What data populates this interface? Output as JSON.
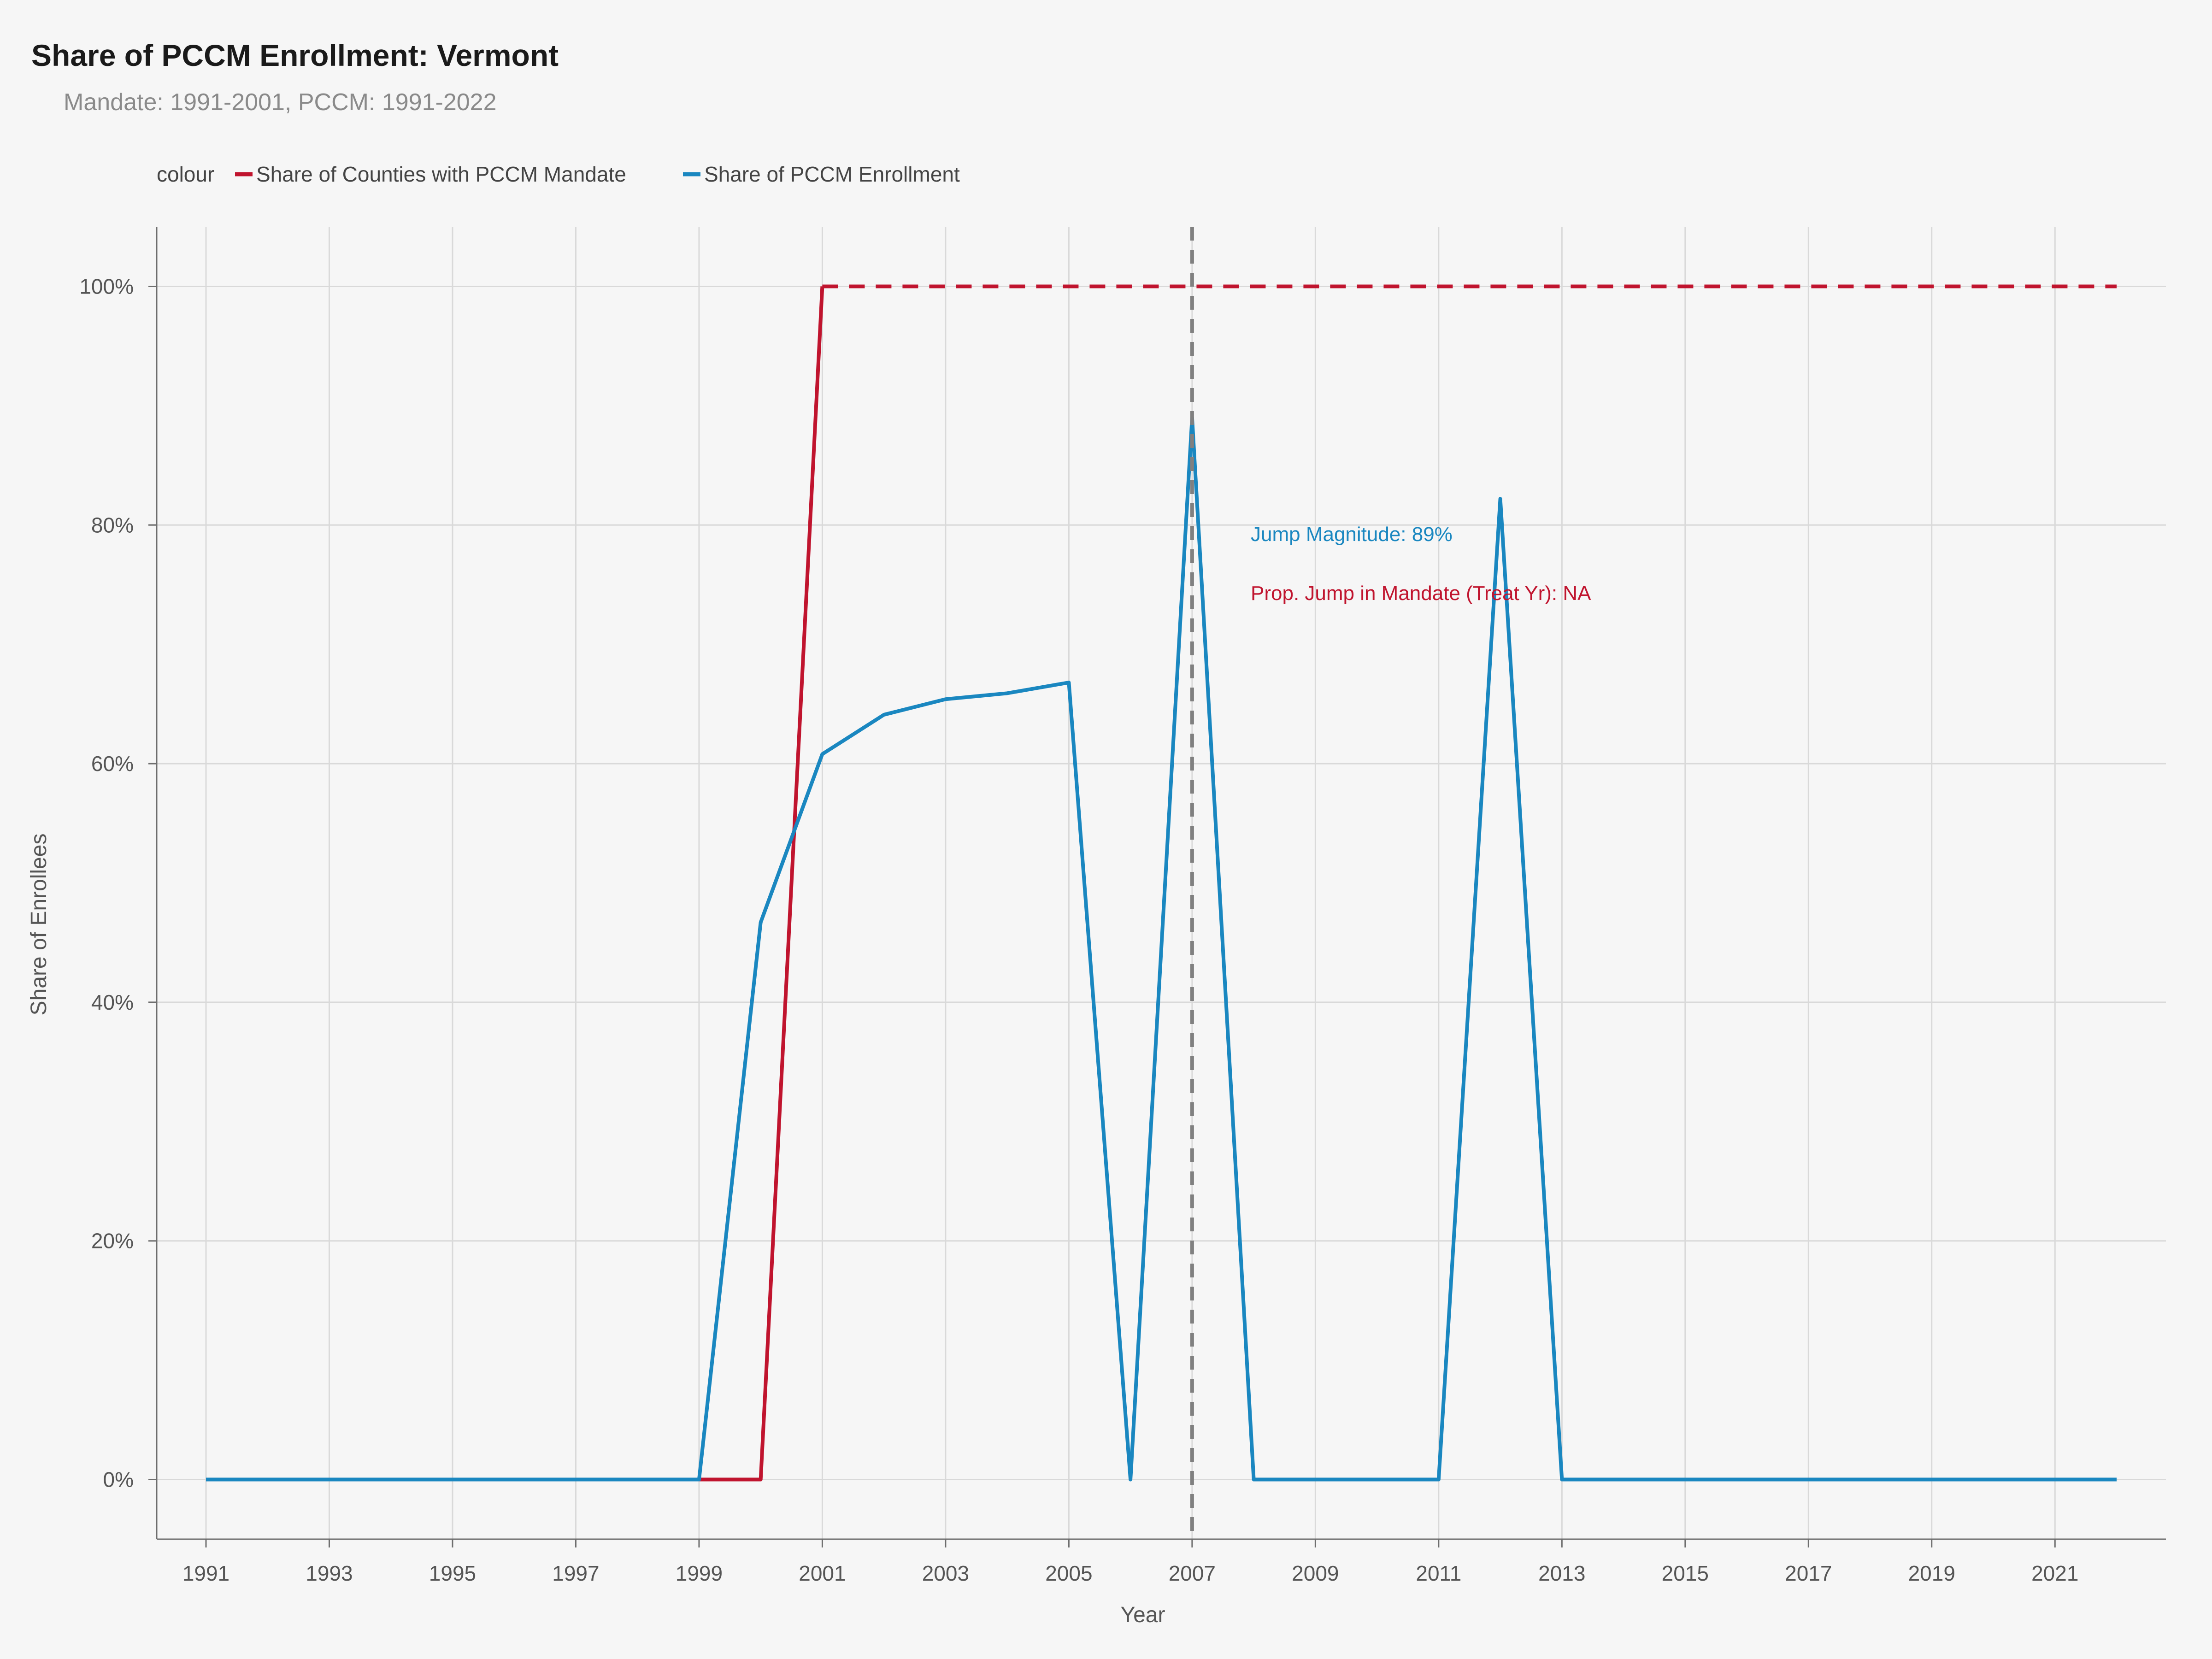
{
  "title": "Share of PCCM Enrollment: Vermont",
  "subtitle": "Mandate: 1991-2001, PCCM: 1991-2022",
  "legend": {
    "title": "colour",
    "placement": "top-left"
  },
  "annotations": {
    "jump": "Jump Magnitude: 89%",
    "prop_jump": "Prop. Jump in Mandate (Treat Yr): NA"
  },
  "colors": {
    "mandate": "#c0142e",
    "enrollment": "#1a87c0",
    "vline": "#808080",
    "grid": "#d9d9d9",
    "background": "#f6f6f6"
  },
  "chart_data": {
    "type": "line",
    "xlabel": "Year",
    "ylabel": "Share of Enrollees",
    "xlim": [
      1990.2,
      2022.8
    ],
    "ylim": [
      -0.05,
      1.05
    ],
    "x_ticks": [
      1991,
      1993,
      1995,
      1997,
      1999,
      2001,
      2003,
      2005,
      2007,
      2009,
      2011,
      2013,
      2015,
      2017,
      2019,
      2021
    ],
    "y_ticks": [
      0,
      0.2,
      0.4,
      0.6,
      0.8,
      1.0
    ],
    "y_tick_labels": [
      "0%",
      "20%",
      "40%",
      "60%",
      "80%",
      "100%"
    ],
    "grid": true,
    "vertical_line": 2007,
    "series": [
      {
        "name": "Share of Counties with PCCM Mandate",
        "color": "#c0142e",
        "style": "solid",
        "x": [
          1991,
          1992,
          1993,
          1994,
          1995,
          1996,
          1997,
          1998,
          1999,
          2000,
          2001
        ],
        "y": [
          0,
          0,
          0,
          0,
          0,
          0,
          0,
          0,
          0,
          0,
          1.0
        ]
      },
      {
        "name": "Share of Counties with PCCM Mandate (continued)",
        "legend": false,
        "color": "#c0142e",
        "style": "dashed",
        "x": [
          2001,
          2022
        ],
        "y": [
          1.0,
          1.0
        ]
      },
      {
        "name": "Share of PCCM Enrollment",
        "color": "#1a87c0",
        "style": "solid",
        "x": [
          1991,
          1992,
          1993,
          1994,
          1995,
          1996,
          1997,
          1998,
          1999,
          2000,
          2001,
          2002,
          2003,
          2004,
          2005,
          2006,
          2007,
          2008,
          2009,
          2010,
          2011,
          2012,
          2013,
          2014,
          2015,
          2016,
          2017,
          2018,
          2019,
          2020,
          2021,
          2022
        ],
        "y": [
          0,
          0,
          0,
          0,
          0,
          0,
          0,
          0,
          0,
          0.467,
          0.608,
          0.641,
          0.654,
          0.659,
          0.668,
          0,
          0.89,
          0,
          0,
          0,
          0,
          0.822,
          0,
          0,
          0,
          0,
          0,
          0,
          0,
          0,
          0,
          0
        ]
      }
    ]
  }
}
